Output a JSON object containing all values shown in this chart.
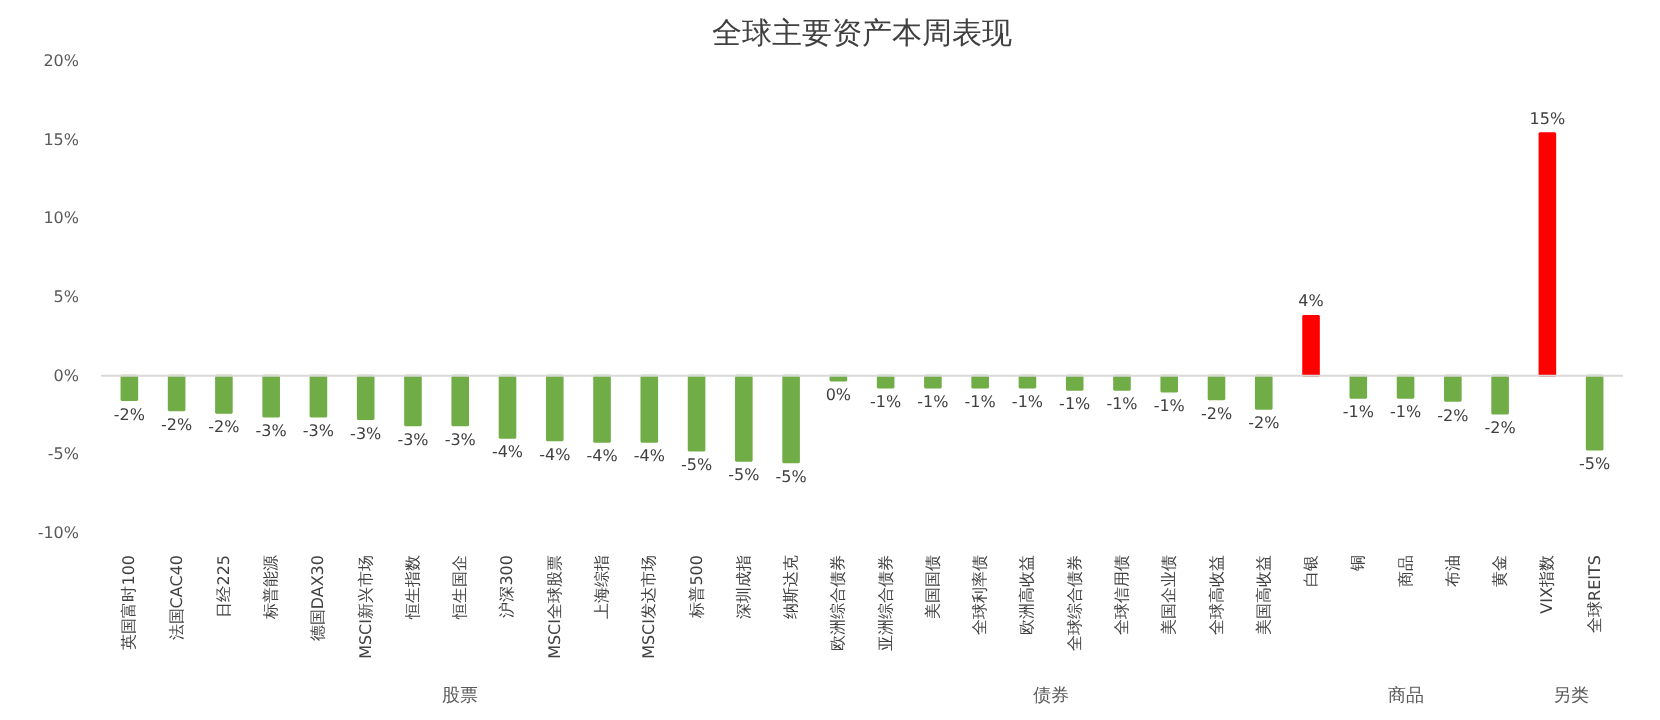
{
  "chart_data": {
    "type": "bar",
    "title": "全球主要资产本周表现",
    "categories": [
      "英国富时100",
      "法国CAC40",
      "日经225",
      "标普能源",
      "德国DAX30",
      "MSCI新兴市场",
      "恒生指数",
      "恒生国企",
      "沪深300",
      "MSCI全球股票",
      "上海综指",
      "MSCI发达市场",
      "标普500",
      "深圳成指",
      "纳斯达克",
      "欧洲综合债券",
      "亚洲综合债券",
      "美国国债",
      "全球利率债",
      "欧洲高收益",
      "全球综合债券",
      "全球信用债",
      "美国企业债",
      "全球高收益",
      "美国高收益",
      "白银",
      "铜",
      "商品",
      "布油",
      "黄金",
      "VIX指数",
      "全球REITS"
    ],
    "values": [
      -1.55,
      -2.2,
      -2.35,
      -2.6,
      -2.6,
      -2.75,
      -3.15,
      -3.15,
      -3.95,
      -4.1,
      -4.2,
      -4.2,
      -4.75,
      -5.4,
      -5.5,
      -0.3,
      -0.75,
      -0.75,
      -0.75,
      -0.75,
      -0.9,
      -0.9,
      -1.0,
      -1.5,
      -2.1,
      3.8,
      -1.4,
      -1.4,
      -1.6,
      -2.4,
      15.4,
      -4.7
    ],
    "colors": [
      "#70ad47",
      "#70ad47",
      "#70ad47",
      "#70ad47",
      "#70ad47",
      "#70ad47",
      "#70ad47",
      "#70ad47",
      "#70ad47",
      "#70ad47",
      "#70ad47",
      "#70ad47",
      "#70ad47",
      "#70ad47",
      "#70ad47",
      "#70ad47",
      "#70ad47",
      "#70ad47",
      "#70ad47",
      "#70ad47",
      "#70ad47",
      "#70ad47",
      "#70ad47",
      "#70ad47",
      "#70ad47",
      "#ff0000",
      "#70ad47",
      "#70ad47",
      "#70ad47",
      "#70ad47",
      "#ff0000",
      "#70ad47"
    ],
    "value_labels": [
      "-2%",
      "-2%",
      "-2%",
      "-3%",
      "-3%",
      "-3%",
      "-3%",
      "-3%",
      "-4%",
      "-4%",
      "-4%",
      "-4%",
      "-5%",
      "-5%",
      "-5%",
      "0%",
      "-1%",
      "-1%",
      "-1%",
      "-1%",
      "-1%",
      "-1%",
      "-1%",
      "-2%",
      "-2%",
      "4%",
      "-1%",
      "-1%",
      "-2%",
      "-2%",
      "15%",
      "-5%"
    ],
    "ylim": [
      -10,
      20
    ],
    "yticks": [
      {
        "value": -10,
        "label": "-10%"
      },
      {
        "value": -5,
        "label": "-5%"
      },
      {
        "value": 0,
        "label": "0%"
      },
      {
        "value": 5,
        "label": "5%"
      },
      {
        "value": 10,
        "label": "10%"
      },
      {
        "value": 15,
        "label": "15%"
      },
      {
        "value": 20,
        "label": "20%"
      }
    ],
    "annotations": [
      "股票",
      "债券",
      "商品",
      "另类"
    ],
    "ref_lines": [
      {
        "axis": "y",
        "value": 0,
        "color": "#d9d9d9"
      }
    ],
    "grid": false
  }
}
